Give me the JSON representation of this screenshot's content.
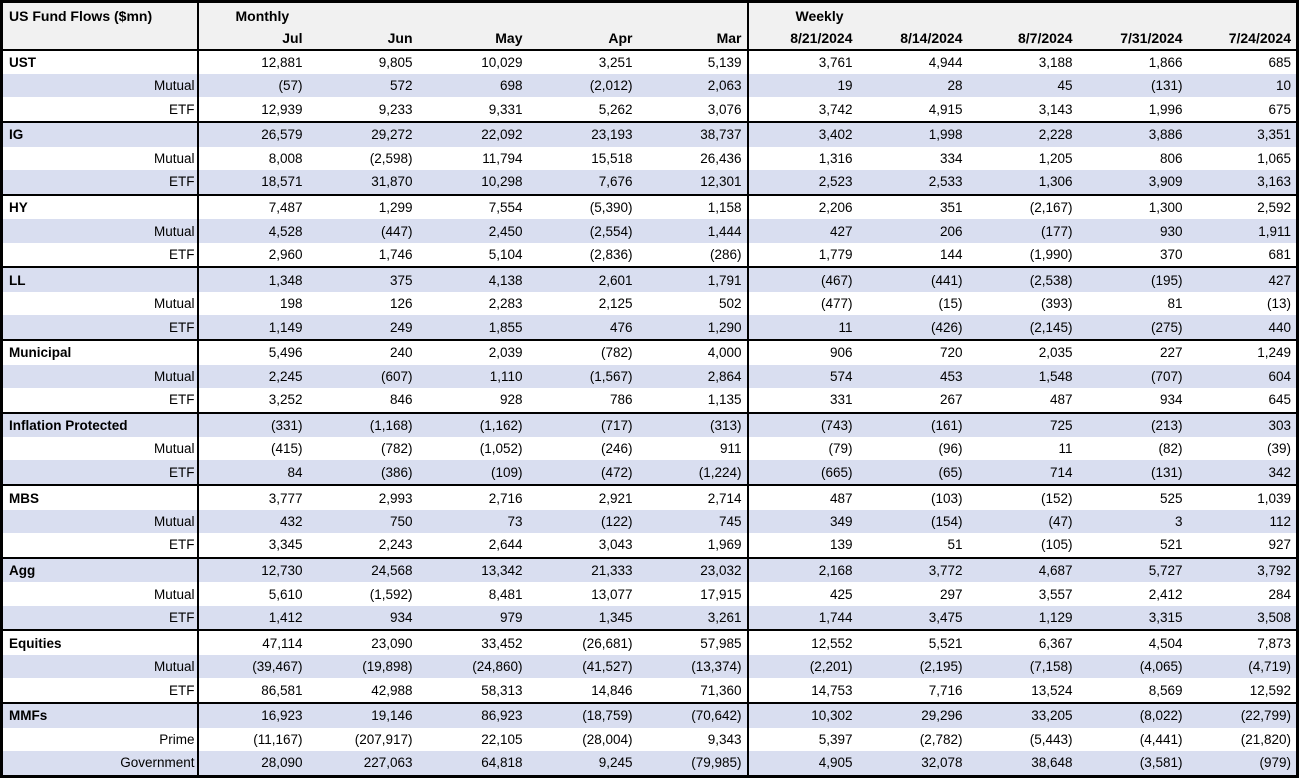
{
  "colors": {
    "row_stripe": "#d9def0",
    "header_bg": "#f1f1f1",
    "border": "#000000",
    "text": "#000000"
  },
  "chart_data": {
    "type": "table",
    "title": "US Fund Flows ($mn)",
    "negative_format": "parentheses",
    "column_groups": [
      {
        "label": "Monthly",
        "columns": [
          "Jul",
          "Jun",
          "May",
          "Apr",
          "Mar"
        ]
      },
      {
        "label": "Weekly",
        "columns": [
          "8/21/2024",
          "8/14/2024",
          "8/7/2024",
          "7/31/2024",
          "7/24/2024"
        ]
      }
    ],
    "rows": [
      {
        "label": "UST",
        "level": "category",
        "monthly": [
          "12,881",
          "9,805",
          "10,029",
          "3,251",
          "5,139"
        ],
        "weekly": [
          "3,761",
          "4,944",
          "3,188",
          "1,866",
          "685"
        ]
      },
      {
        "label": "Mutual",
        "level": "sub",
        "monthly": [
          "(57)",
          "572",
          "698",
          "(2,012)",
          "2,063"
        ],
        "weekly": [
          "19",
          "28",
          "45",
          "(131)",
          "10"
        ]
      },
      {
        "label": "ETF",
        "level": "sub",
        "monthly": [
          "12,939",
          "9,233",
          "9,331",
          "5,262",
          "3,076"
        ],
        "weekly": [
          "3,742",
          "4,915",
          "3,143",
          "1,996",
          "675"
        ]
      },
      {
        "label": "IG",
        "level": "category",
        "monthly": [
          "26,579",
          "29,272",
          "22,092",
          "23,193",
          "38,737"
        ],
        "weekly": [
          "3,402",
          "1,998",
          "2,228",
          "3,886",
          "3,351"
        ]
      },
      {
        "label": "Mutual",
        "level": "sub",
        "monthly": [
          "8,008",
          "(2,598)",
          "11,794",
          "15,518",
          "26,436"
        ],
        "weekly": [
          "1,316",
          "334",
          "1,205",
          "806",
          "1,065"
        ]
      },
      {
        "label": "ETF",
        "level": "sub",
        "monthly": [
          "18,571",
          "31,870",
          "10,298",
          "7,676",
          "12,301"
        ],
        "weekly": [
          "2,523",
          "2,533",
          "1,306",
          "3,909",
          "3,163"
        ]
      },
      {
        "label": "HY",
        "level": "category",
        "monthly": [
          "7,487",
          "1,299",
          "7,554",
          "(5,390)",
          "1,158"
        ],
        "weekly": [
          "2,206",
          "351",
          "(2,167)",
          "1,300",
          "2,592"
        ]
      },
      {
        "label": "Mutual",
        "level": "sub",
        "monthly": [
          "4,528",
          "(447)",
          "2,450",
          "(2,554)",
          "1,444"
        ],
        "weekly": [
          "427",
          "206",
          "(177)",
          "930",
          "1,911"
        ]
      },
      {
        "label": "ETF",
        "level": "sub",
        "monthly": [
          "2,960",
          "1,746",
          "5,104",
          "(2,836)",
          "(286)"
        ],
        "weekly": [
          "1,779",
          "144",
          "(1,990)",
          "370",
          "681"
        ]
      },
      {
        "label": "LL",
        "level": "category",
        "monthly": [
          "1,348",
          "375",
          "4,138",
          "2,601",
          "1,791"
        ],
        "weekly": [
          "(467)",
          "(441)",
          "(2,538)",
          "(195)",
          "427"
        ]
      },
      {
        "label": "Mutual",
        "level": "sub",
        "monthly": [
          "198",
          "126",
          "2,283",
          "2,125",
          "502"
        ],
        "weekly": [
          "(477)",
          "(15)",
          "(393)",
          "81",
          "(13)"
        ]
      },
      {
        "label": "ETF",
        "level": "sub",
        "monthly": [
          "1,149",
          "249",
          "1,855",
          "476",
          "1,290"
        ],
        "weekly": [
          "11",
          "(426)",
          "(2,145)",
          "(275)",
          "440"
        ]
      },
      {
        "label": "Municipal",
        "level": "category",
        "monthly": [
          "5,496",
          "240",
          "2,039",
          "(782)",
          "4,000"
        ],
        "weekly": [
          "906",
          "720",
          "2,035",
          "227",
          "1,249"
        ]
      },
      {
        "label": "Mutual",
        "level": "sub",
        "monthly": [
          "2,245",
          "(607)",
          "1,110",
          "(1,567)",
          "2,864"
        ],
        "weekly": [
          "574",
          "453",
          "1,548",
          "(707)",
          "604"
        ]
      },
      {
        "label": "ETF",
        "level": "sub",
        "monthly": [
          "3,252",
          "846",
          "928",
          "786",
          "1,135"
        ],
        "weekly": [
          "331",
          "267",
          "487",
          "934",
          "645"
        ]
      },
      {
        "label": "Inflation Protected",
        "level": "category",
        "monthly": [
          "(331)",
          "(1,168)",
          "(1,162)",
          "(717)",
          "(313)"
        ],
        "weekly": [
          "(743)",
          "(161)",
          "725",
          "(213)",
          "303"
        ]
      },
      {
        "label": "Mutual",
        "level": "sub",
        "monthly": [
          "(415)",
          "(782)",
          "(1,052)",
          "(246)",
          "911"
        ],
        "weekly": [
          "(79)",
          "(96)",
          "11",
          "(82)",
          "(39)"
        ]
      },
      {
        "label": "ETF",
        "level": "sub",
        "monthly": [
          "84",
          "(386)",
          "(109)",
          "(472)",
          "(1,224)"
        ],
        "weekly": [
          "(665)",
          "(65)",
          "714",
          "(131)",
          "342"
        ]
      },
      {
        "label": "MBS",
        "level": "category",
        "monthly": [
          "3,777",
          "2,993",
          "2,716",
          "2,921",
          "2,714"
        ],
        "weekly": [
          "487",
          "(103)",
          "(152)",
          "525",
          "1,039"
        ]
      },
      {
        "label": "Mutual",
        "level": "sub",
        "monthly": [
          "432",
          "750",
          "73",
          "(122)",
          "745"
        ],
        "weekly": [
          "349",
          "(154)",
          "(47)",
          "3",
          "112"
        ]
      },
      {
        "label": "ETF",
        "level": "sub",
        "monthly": [
          "3,345",
          "2,243",
          "2,644",
          "3,043",
          "1,969"
        ],
        "weekly": [
          "139",
          "51",
          "(105)",
          "521",
          "927"
        ]
      },
      {
        "label": "Agg",
        "level": "category",
        "monthly": [
          "12,730",
          "24,568",
          "13,342",
          "21,333",
          "23,032"
        ],
        "weekly": [
          "2,168",
          "3,772",
          "4,687",
          "5,727",
          "3,792"
        ]
      },
      {
        "label": "Mutual",
        "level": "sub",
        "monthly": [
          "5,610",
          "(1,592)",
          "8,481",
          "13,077",
          "17,915"
        ],
        "weekly": [
          "425",
          "297",
          "3,557",
          "2,412",
          "284"
        ]
      },
      {
        "label": "ETF",
        "level": "sub",
        "monthly": [
          "1,412",
          "934",
          "979",
          "1,345",
          "3,261"
        ],
        "weekly": [
          "1,744",
          "3,475",
          "1,129",
          "3,315",
          "3,508"
        ]
      },
      {
        "label": "Equities",
        "level": "category",
        "monthly": [
          "47,114",
          "23,090",
          "33,452",
          "(26,681)",
          "57,985"
        ],
        "weekly": [
          "12,552",
          "5,521",
          "6,367",
          "4,504",
          "7,873"
        ]
      },
      {
        "label": "Mutual",
        "level": "sub",
        "monthly": [
          "(39,467)",
          "(19,898)",
          "(24,860)",
          "(41,527)",
          "(13,374)"
        ],
        "weekly": [
          "(2,201)",
          "(2,195)",
          "(7,158)",
          "(4,065)",
          "(4,719)"
        ]
      },
      {
        "label": "ETF",
        "level": "sub",
        "monthly": [
          "86,581",
          "42,988",
          "58,313",
          "14,846",
          "71,360"
        ],
        "weekly": [
          "14,753",
          "7,716",
          "13,524",
          "8,569",
          "12,592"
        ]
      },
      {
        "label": "MMFs",
        "level": "category",
        "monthly": [
          "16,923",
          "19,146",
          "86,923",
          "(18,759)",
          "(70,642)"
        ],
        "weekly": [
          "10,302",
          "29,296",
          "33,205",
          "(8,022)",
          "(22,799)"
        ]
      },
      {
        "label": "Prime",
        "level": "sub",
        "monthly": [
          "(11,167)",
          "(207,917)",
          "22,105",
          "(28,004)",
          "9,343"
        ],
        "weekly": [
          "5,397",
          "(2,782)",
          "(5,443)",
          "(4,441)",
          "(21,820)"
        ]
      },
      {
        "label": "Government",
        "level": "sub",
        "monthly": [
          "28,090",
          "227,063",
          "64,818",
          "9,245",
          "(79,985)"
        ],
        "weekly": [
          "4,905",
          "32,078",
          "38,648",
          "(3,581)",
          "(979)"
        ]
      }
    ]
  }
}
